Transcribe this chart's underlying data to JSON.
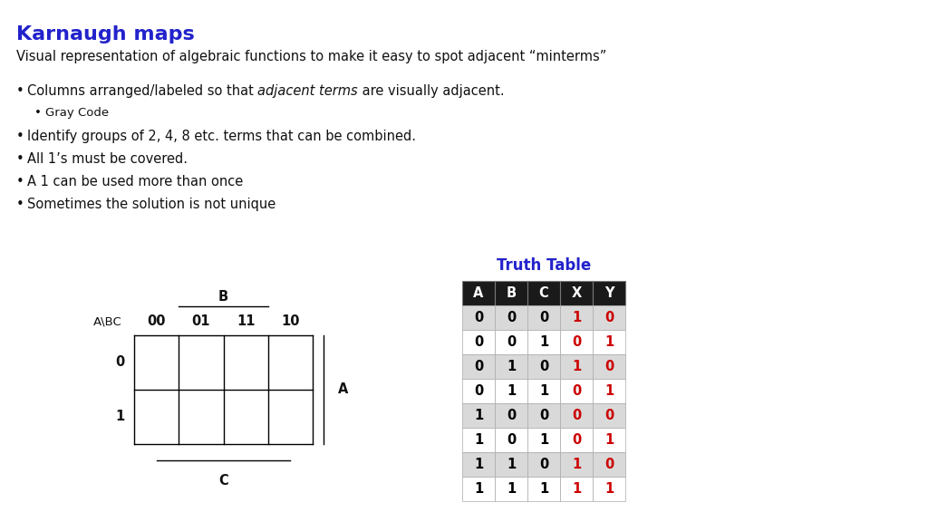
{
  "title": "Karnaugh maps",
  "title_color": "#2222CC",
  "subtitle": "Visual representation of algebraic functions to make it easy to spot adjacent “minterms”",
  "truth_table_title": "Truth Table",
  "truth_table_headers": [
    "A",
    "B",
    "C",
    "X",
    "Y"
  ],
  "truth_table_data": [
    [
      0,
      0,
      0,
      1,
      0
    ],
    [
      0,
      0,
      1,
      0,
      1
    ],
    [
      0,
      1,
      0,
      1,
      0
    ],
    [
      0,
      1,
      1,
      0,
      1
    ],
    [
      1,
      0,
      0,
      0,
      0
    ],
    [
      1,
      0,
      1,
      0,
      1
    ],
    [
      1,
      1,
      0,
      1,
      0
    ],
    [
      1,
      1,
      1,
      1,
      1
    ]
  ],
  "kmap_col_labels": [
    "00",
    "01",
    "11",
    "10"
  ],
  "kmap_row_labels": [
    "0",
    "1"
  ],
  "kmap_row_header": "A\\BC",
  "kmap_col_axis": "B",
  "kmap_row_axis": "A",
  "kmap_bottom_axis": "C",
  "background_color": "#ffffff",
  "header_bg": "#1a1a1a",
  "header_fg": "#ffffff",
  "row_bg_even": "#d9d9d9",
  "row_bg_odd": "#ffffff",
  "xy_color": "#cc0000",
  "abc_color": "#000000",
  "bullet_texts": [
    [
      "Columns arranged/labeled so that ",
      true,
      "adjacent terms",
      " are visually adjacent."
    ],
    [
      "Gray Code",
      false,
      null,
      null
    ],
    [
      "Identify groups of 2, 4, 8 etc. terms that can be combined.",
      false,
      null,
      null
    ],
    [
      "All 1’s must be covered.",
      false,
      null,
      null
    ],
    [
      "A 1 can be used more than once",
      false,
      null,
      null
    ],
    [
      "Sometimes the solution is not unique",
      false,
      null,
      null
    ]
  ]
}
